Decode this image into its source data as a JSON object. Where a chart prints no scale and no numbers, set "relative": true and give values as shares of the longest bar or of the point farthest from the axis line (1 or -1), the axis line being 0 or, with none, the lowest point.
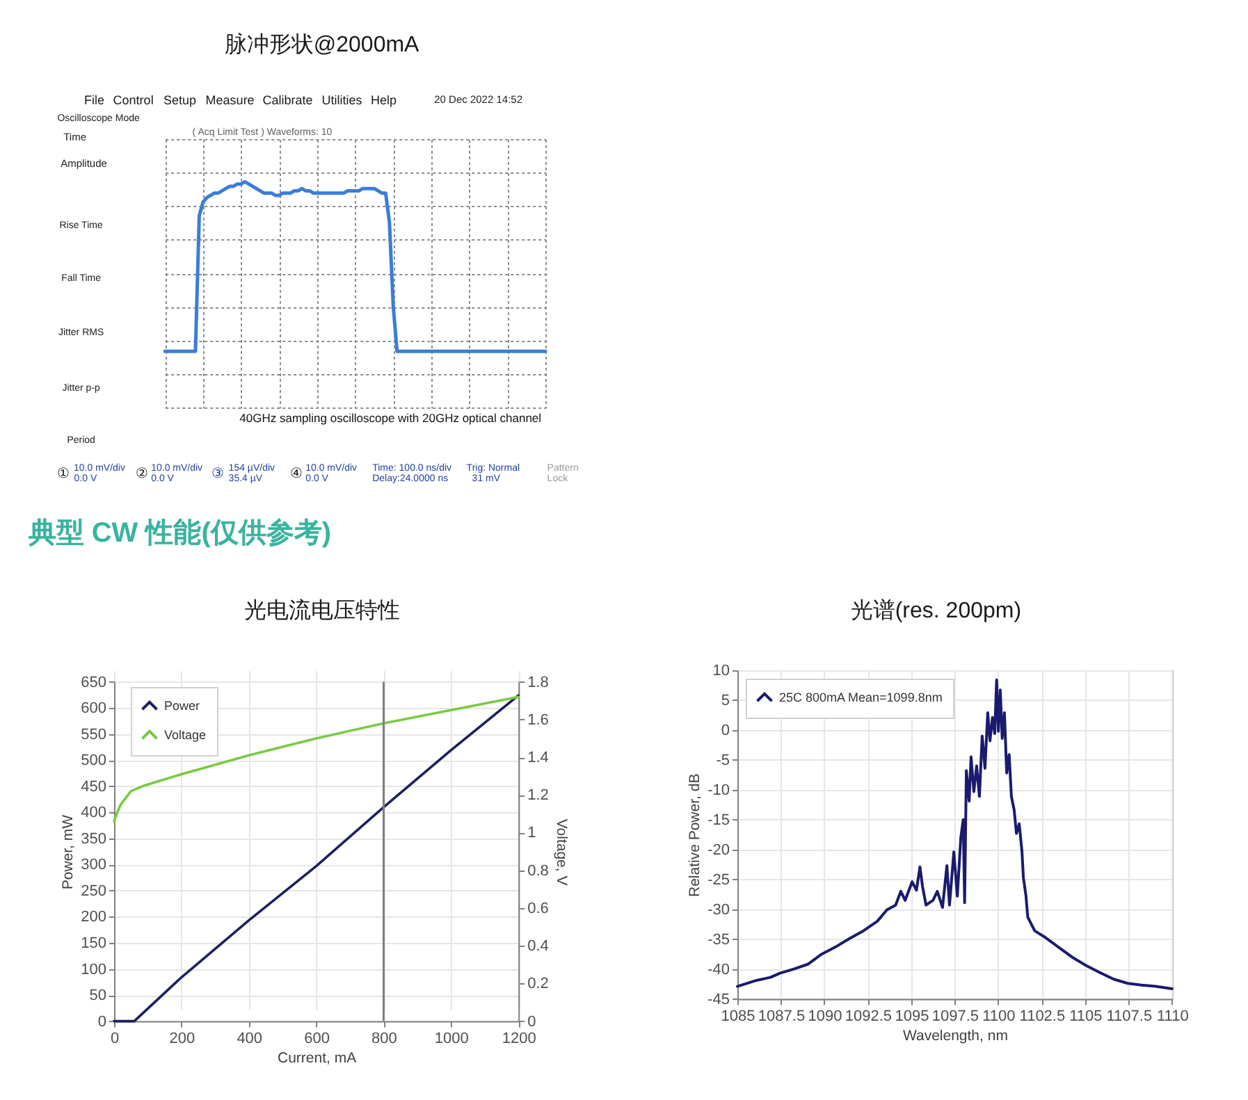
{
  "chart_data": [
    {
      "type": "line",
      "title": "脉冲形状@2000mA",
      "relative": true,
      "grid": true,
      "categories": [
        null,
        null,
        null,
        null,
        null,
        null,
        null,
        null,
        null,
        null,
        null,
        null,
        null,
        null,
        null,
        null,
        null,
        null,
        null,
        null,
        null,
        null,
        null,
        null,
        null,
        null,
        null,
        null,
        null,
        null,
        null,
        null,
        null,
        null,
        null,
        null,
        null,
        null,
        null,
        null,
        null,
        null,
        null,
        null,
        null,
        null,
        null,
        null,
        null,
        null,
        null,
        null,
        null,
        null,
        null,
        null,
        null,
        null,
        null,
        null,
        null,
        null,
        null,
        null,
        null,
        null,
        null,
        null,
        null,
        null,
        null,
        null,
        null,
        null,
        null,
        null,
        null,
        null,
        null,
        null,
        null,
        null,
        null,
        null,
        null,
        null,
        null,
        null,
        null,
        null,
        null,
        null,
        null,
        null,
        null,
        null,
        null,
        null,
        null,
        null,
        null
      ],
      "series": [
        {
          "color": "#3b7dd8",
          "values": [
            0.25,
            0.25,
            0.25,
            0.25,
            0.25,
            0.25,
            0.25,
            0.25,
            0.25,
            0.85,
            0.91,
            0.93,
            0.94,
            0.95,
            0.95,
            0.96,
            0.97,
            0.98,
            0.98,
            0.99,
            0.99,
            1.0,
            0.99,
            0.98,
            0.97,
            0.96,
            0.95,
            0.95,
            0.95,
            0.94,
            0.94,
            0.95,
            0.95,
            0.95,
            0.96,
            0.96,
            0.97,
            0.96,
            0.96,
            0.95,
            0.95,
            0.95,
            0.95,
            0.95,
            0.95,
            0.95,
            0.95,
            0.95,
            0.96,
            0.96,
            0.96,
            0.96,
            0.97,
            0.97,
            0.97,
            0.97,
            0.96,
            0.95,
            0.95,
            0.82,
            0.45,
            0.25,
            0.25,
            0.25,
            0.25,
            0.25,
            0.25,
            0.25,
            0.25,
            0.25,
            0.25,
            0.25,
            0.25,
            0.25,
            0.25,
            0.25,
            0.25,
            0.25,
            0.25,
            0.25,
            0.25,
            0.25,
            0.25,
            0.25,
            0.25,
            0.25,
            0.25,
            0.25,
            0.25,
            0.25,
            0.25,
            0.25,
            0.25,
            0.25,
            0.25,
            0.25,
            0.25,
            0.25,
            0.25,
            0.25,
            0.25
          ]
        }
      ],
      "annotations": [
        "File",
        "Control",
        "Setup",
        "Measure",
        "Calibrate",
        "Utilities",
        "Help",
        "20 Dec 2022 14:52",
        "Oscilloscope Mode",
        "Time",
        "Amplitude",
        "Rise Time",
        "Fall Time",
        "Jitter RMS",
        "Jitter p-p",
        "Period",
        "( Acq Limit Test ) Waveforms: 10",
        "40GHz sampling oscilloscope with 20GHz optical channel",
        "①",
        "10.0 mV/div",
        "0.0 V",
        "②",
        "10.0 mV/div",
        "0.0 V",
        "③",
        "154 µV/div",
        "35.4 µV",
        "④",
        "10.0 mV/div",
        "0.0 V",
        "Time: 100.0 ns/div",
        "Delay:24.0000 ns",
        "Trig: Normal",
        "31 mV",
        "Pattern",
        "Lock"
      ]
    },
    {
      "type": "other",
      "title": "典型 CW 性能(仅供参考)"
    },
    {
      "type": "line",
      "title": "光电流电压特性",
      "xlabel": "Current, mA",
      "ylabel": "Power, mW",
      "y2label": "Voltage, V",
      "xlim": [
        0,
        1200
      ],
      "xticks": [
        0,
        200,
        400,
        600,
        800,
        1000,
        1200
      ],
      "ylim": [
        0,
        650
      ],
      "yticks": [
        0,
        50,
        100,
        150,
        200,
        250,
        300,
        350,
        400,
        450,
        500,
        550,
        600,
        650
      ],
      "y2lim": [
        0,
        1.8
      ],
      "y2ticks": [
        0,
        0.2,
        0.4,
        0.6,
        0.8,
        1,
        1.2,
        1.4,
        1.6,
        1.8
      ],
      "grid": true,
      "legend": "top left",
      "series": [
        {
          "name": "Power",
          "color": "#1c1f5e",
          "x": [
            0,
            60,
            200,
            400,
            600,
            800,
            1000,
            1200
          ],
          "values": [
            0,
            0,
            84,
            193,
            297,
            410,
            519,
            624
          ]
        },
        {
          "name": "Voltage",
          "color": "#7ac943",
          "axis": "y2",
          "x": [
            0,
            10,
            20,
            50,
            90,
            200,
            400,
            600,
            800,
            1000,
            1200
          ],
          "values": [
            1.06,
            1.11,
            1.15,
            1.22,
            1.25,
            1.31,
            1.41,
            1.5,
            1.58,
            1.65,
            1.72
          ]
        }
      ],
      "ref_lines": [
        {
          "axis": "x",
          "value": 800,
          "color": "#7f7f7f"
        }
      ]
    },
    {
      "type": "line",
      "title": "光谱(res. 200pm)",
      "xlabel": "Wavelength, nm",
      "ylabel": "Relative Power, dB",
      "xlim": [
        1085,
        1110
      ],
      "xticks": [
        1085,
        1087.5,
        1090,
        1092.5,
        1095,
        1097.5,
        1100,
        1102.5,
        1105,
        1107.5,
        1110
      ],
      "ylim": [
        -45,
        10
      ],
      "yticks": [
        -45,
        -40,
        -35,
        -30,
        -25,
        -20,
        -15,
        -10,
        -5,
        0,
        5,
        10
      ],
      "grid": true,
      "legend": "top left",
      "series": [
        {
          "name": "25C 800mA Mean=1099.8nm",
          "color": "#1a1a6e",
          "x": [
            1085,
            1086.1,
            1086.9,
            1087.45,
            1088.25,
            1089.05,
            1089.85,
            1090.65,
            1091.45,
            1092.25,
            1093.05,
            1093.6,
            1094.1,
            1094.4,
            1094.65,
            1095.05,
            1095.3,
            1095.5,
            1095.65,
            1095.85,
            1096.25,
            1096.5,
            1096.8,
            1097.05,
            1097.2,
            1097.45,
            1097.65,
            1097.85,
            1097.99,
            1098.07,
            1098.17,
            1098.33,
            1098.44,
            1098.6,
            1098.76,
            1098.92,
            1099.08,
            1099.24,
            1099.4,
            1099.53,
            1099.67,
            1099.8,
            1099.91,
            1100.01,
            1100.12,
            1100.23,
            1100.36,
            1100.49,
            1100.63,
            1100.76,
            1100.92,
            1101.05,
            1101.21,
            1101.37,
            1101.45,
            1101.6,
            1101.7,
            1102.1,
            1102.65,
            1103.45,
            1104.25,
            1105.05,
            1105.85,
            1106.65,
            1107.45,
            1108.25,
            1109.05,
            1110
          ],
          "values": [
            -42.9,
            -41.9,
            -41.4,
            -40.7,
            -40.0,
            -39.2,
            -37.5,
            -36.3,
            -34.9,
            -33.6,
            -32.0,
            -30.1,
            -29.3,
            -27.0,
            -28.5,
            -25.4,
            -26.8,
            -22.9,
            -26.2,
            -29.3,
            -28.5,
            -27.0,
            -29.7,
            -22.7,
            -29.3,
            -20.4,
            -27.8,
            -18.0,
            -15.0,
            -28.9,
            -6.8,
            -11.9,
            -4.5,
            -10.3,
            -6.0,
            -11.1,
            -1.0,
            -6.4,
            2.9,
            -1.8,
            2.1,
            -0.6,
            8.4,
            -0.2,
            6.7,
            -1.4,
            2.9,
            -7.2,
            -4.1,
            -11.1,
            -13.4,
            -17.3,
            -15.7,
            -20.4,
            -24.7,
            -27.8,
            -31.3,
            -33.6,
            -34.6,
            -36.3,
            -38.0,
            -39.4,
            -40.6,
            -41.7,
            -42.4,
            -42.7,
            -42.9,
            -43.3
          ]
        }
      ]
    }
  ]
}
